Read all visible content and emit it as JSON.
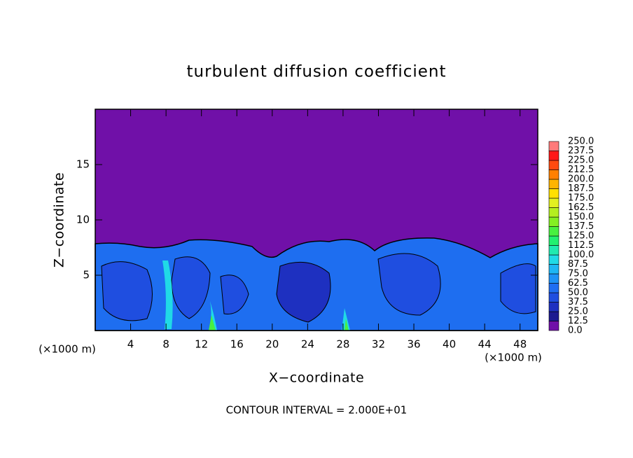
{
  "chart_data": {
    "type": "contour",
    "title": "turbulent diffusion coefficient",
    "x_label": "X−coordinate",
    "y_label": "Z−coordinate",
    "x_unit_left": "(×1000 m)",
    "x_unit_right": "(×1000 m)",
    "footnote": "CONTOUR INTERVAL = 2.000E+01",
    "xlim": [
      0,
      50
    ],
    "xticks": [
      4,
      8,
      12,
      16,
      20,
      24,
      28,
      32,
      36,
      40,
      44,
      48
    ],
    "ylim": [
      0,
      20
    ],
    "yticks": [
      5,
      10,
      15
    ],
    "colorbar": {
      "levels": [
        {
          "value": 0,
          "label": "0.0"
        },
        12.5,
        {
          "value": 25,
          "label": "25.0"
        },
        37.5,
        {
          "value": 50,
          "label": "50.0"
        },
        62.5,
        {
          "value": 75,
          "label": "75.0"
        },
        87.5,
        {
          "value": 100,
          "label": "100.0"
        },
        112.5,
        {
          "value": 125,
          "label": "125.0"
        },
        137.5,
        {
          "value": 150,
          "label": "150.0"
        },
        162.5,
        {
          "value": 175,
          "label": "175.0"
        },
        187.5,
        {
          "value": 200,
          "label": "200.0"
        },
        212.5,
        {
          "value": 225,
          "label": "225.0"
        },
        237.5,
        {
          "value": 250,
          "label": "250.0"
        }
      ],
      "colors": [
        "#7010a8",
        "#1c1a90",
        "#1e30c0",
        "#1f4ee0",
        "#1f6ef2",
        "#1e92f6",
        "#1eb6f4",
        "#20dae6",
        "#20eab0",
        "#22f070",
        "#48f040",
        "#84ef22",
        "#b4ef20",
        "#e2f020",
        "#ffe000",
        "#ffb400",
        "#ff8000",
        "#ff4a10",
        "#ff1818",
        "#ff7a7a"
      ]
    }
  }
}
